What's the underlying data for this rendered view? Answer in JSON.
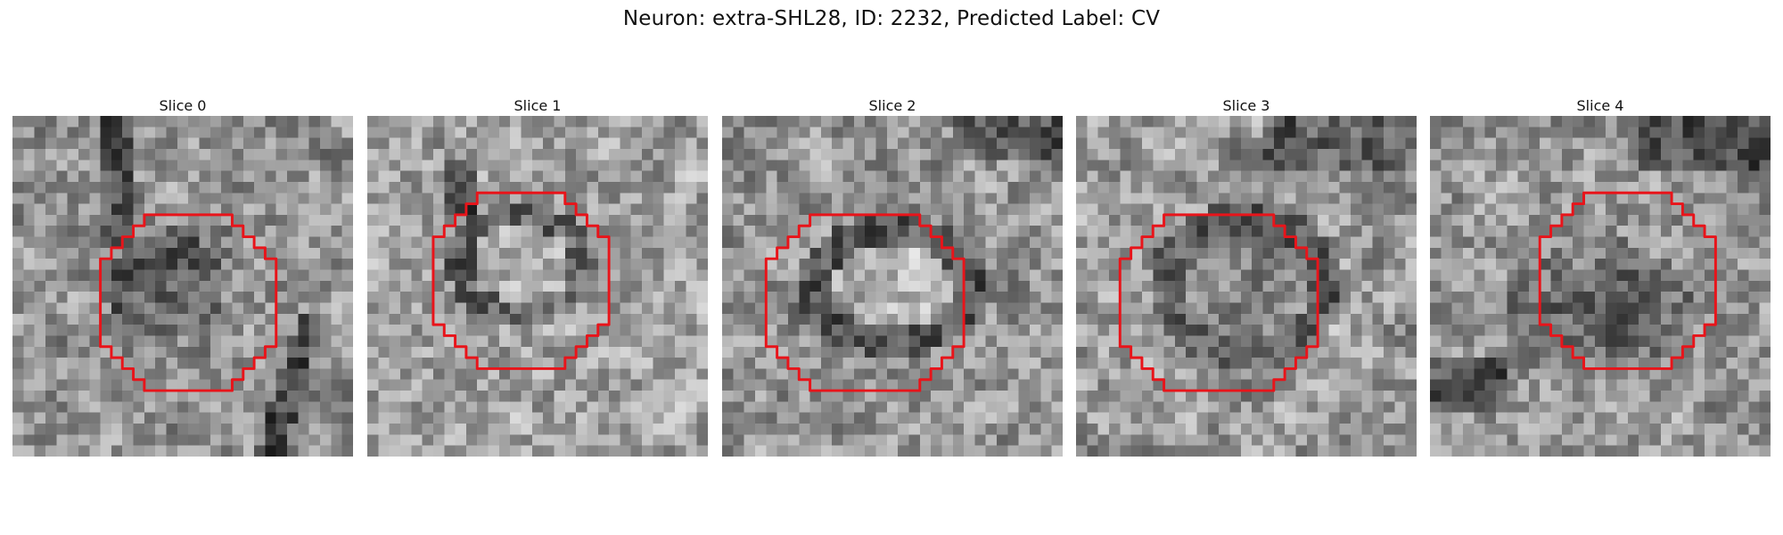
{
  "figure": {
    "title": "Neuron: extra-SHL28, ID: 2232, Predicted Label: CV"
  },
  "panels": [
    {
      "title": "Slice 0"
    },
    {
      "title": "Slice 1"
    },
    {
      "title": "Slice 2"
    },
    {
      "title": "Slice 3"
    },
    {
      "title": "Slice 4"
    }
  ],
  "colors": {
    "mask_outline": "#e8141a",
    "colormap": "gray"
  }
}
